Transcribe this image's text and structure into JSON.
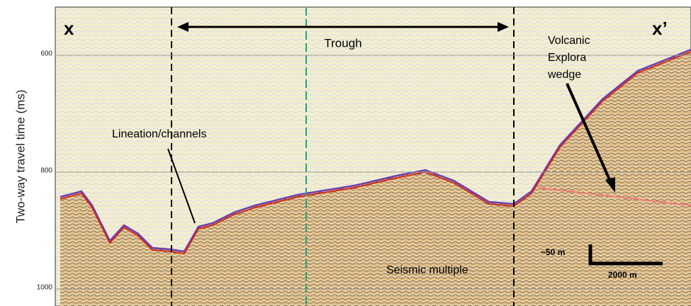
{
  "axis": {
    "label": "Two-way travel time (ms)",
    "ticks": [
      600,
      800,
      1000
    ]
  },
  "profile": {
    "start_label": "x",
    "end_label": "x’"
  },
  "annotations": {
    "trough": "Trough",
    "volcanic": [
      "Volcanic",
      "Explora",
      "wedge"
    ],
    "lineation": "Lineation/channels",
    "multiple": "Seismic multiple"
  },
  "scale_bar": {
    "vertical": "~50 m",
    "horizontal": "2000 m"
  }
}
